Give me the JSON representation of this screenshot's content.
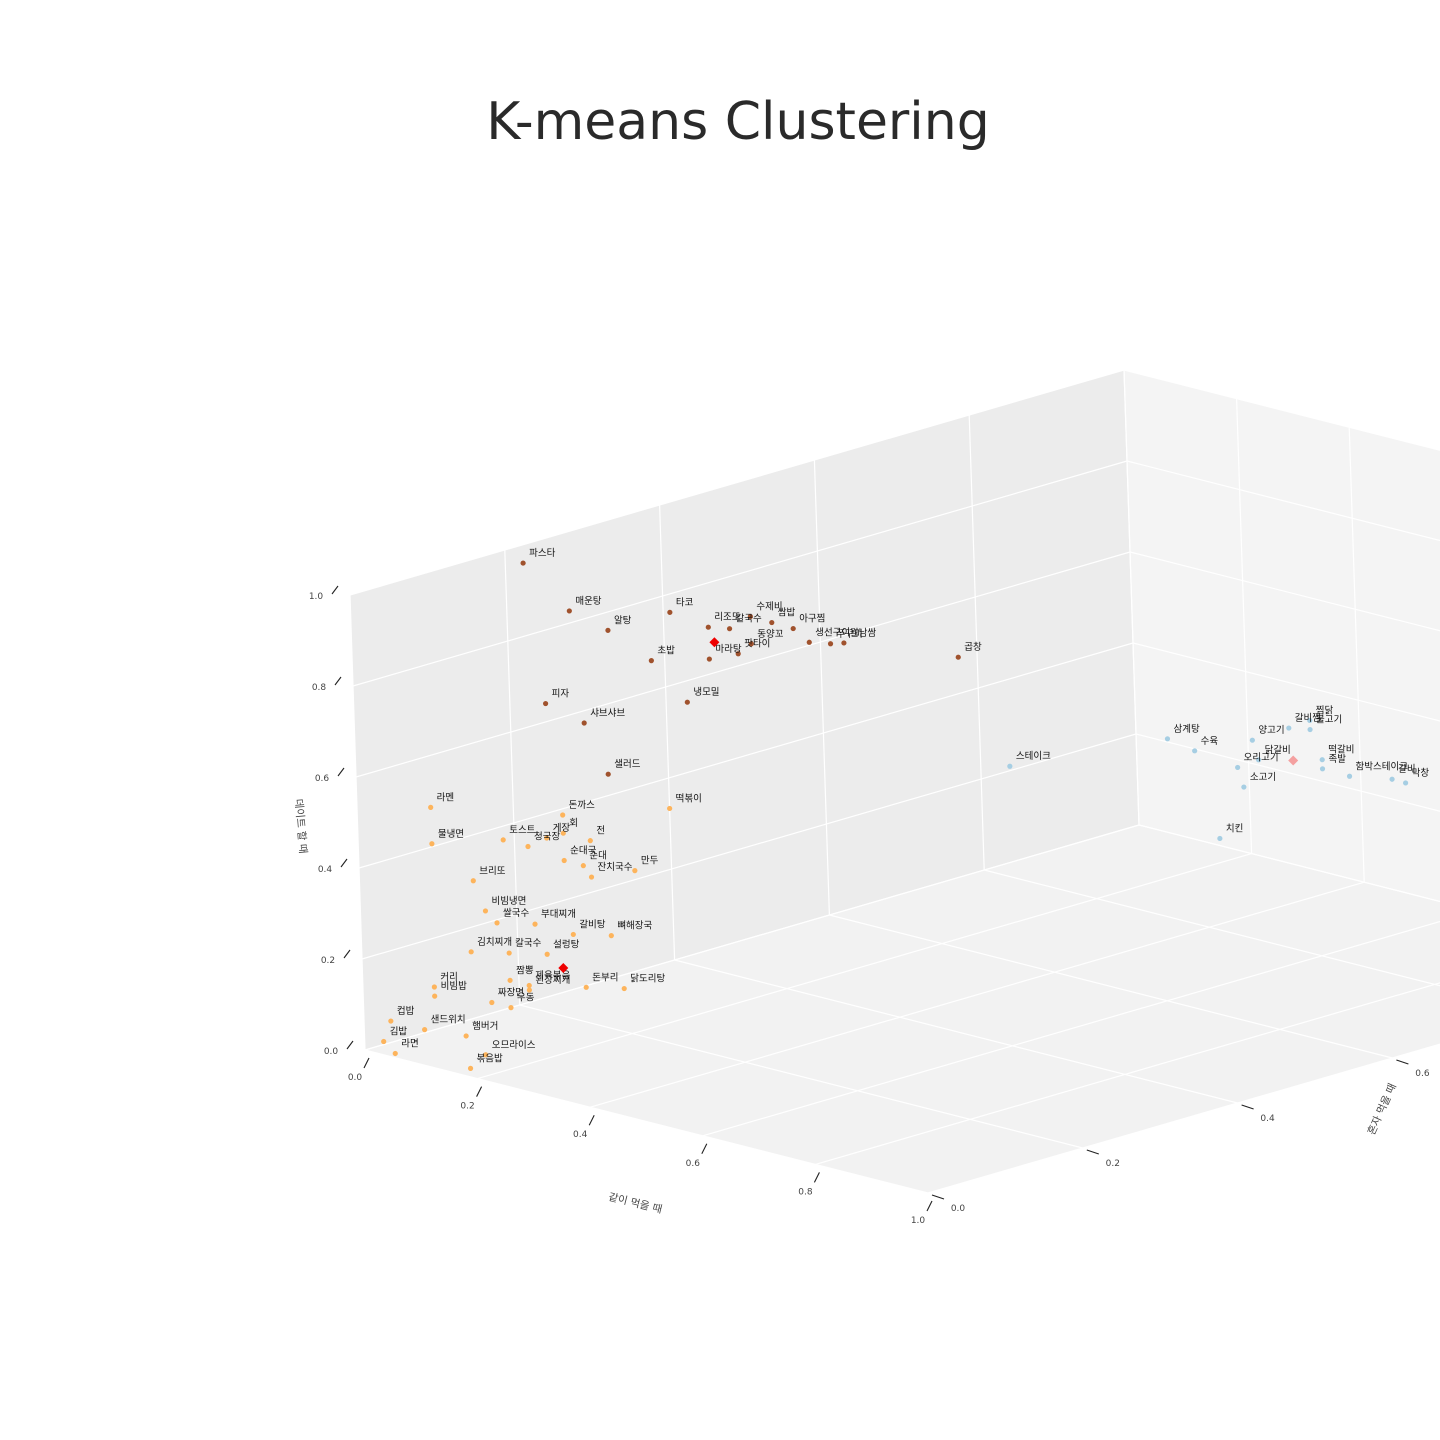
{
  "chart_data": {
    "type": "scatter3d",
    "title": "K-means Clustering",
    "xlabel": "같이 먹을 때",
    "ylabel": "혼자 먹을 때",
    "zlabel": "데이트 할 때",
    "xlim": [
      0,
      1
    ],
    "ylim": [
      0,
      1
    ],
    "zlim": [
      0,
      1
    ],
    "ticks": [
      "0.0",
      "0.2",
      "0.4",
      "0.6",
      "0.8",
      "1.0"
    ],
    "grid": true,
    "colors": {
      "cluster_0": "#a0522d",
      "cluster_1": "#fdb45c",
      "cluster_2": "#a6cee3",
      "center": "#ee0000",
      "center_light": "#f4a0a0"
    },
    "points": [
      {
        "label": "파스타",
        "x": 0.06,
        "y": 0.18,
        "z": 1.0,
        "cluster": 0
      },
      {
        "label": "매운탕",
        "x": 0.14,
        "y": 0.18,
        "z": 0.92,
        "cluster": 0
      },
      {
        "label": "알탕",
        "x": 0.18,
        "y": 0.2,
        "z": 0.88,
        "cluster": 0
      },
      {
        "label": "타코",
        "x": 0.18,
        "y": 0.28,
        "z": 0.88,
        "cluster": 0
      },
      {
        "label": "리조또",
        "x": 0.22,
        "y": 0.3,
        "z": 0.85,
        "cluster": 0
      },
      {
        "label": "수제비",
        "x": 0.24,
        "y": 0.34,
        "z": 0.86,
        "cluster": 0
      },
      {
        "label": "칼국수",
        "x": 0.23,
        "y": 0.32,
        "z": 0.84,
        "cluster": 0
      },
      {
        "label": "쌈밥",
        "x": 0.25,
        "y": 0.36,
        "z": 0.84,
        "cluster": 0
      },
      {
        "label": "초밥",
        "x": 0.2,
        "y": 0.24,
        "z": 0.8,
        "cluster": 0
      },
      {
        "label": "아구찜",
        "x": 0.26,
        "y": 0.38,
        "z": 0.82,
        "cluster": 0
      },
      {
        "label": "동양꼬",
        "x": 0.24,
        "y": 0.34,
        "z": 0.8,
        "cluster": 0
      },
      {
        "label": "마라탕",
        "x": 0.22,
        "y": 0.3,
        "z": 0.78,
        "cluster": 0
      },
      {
        "label": "팟타이",
        "x": 0.23,
        "y": 0.33,
        "z": 0.78,
        "cluster": 0
      },
      {
        "label": "생선구이",
        "x": 0.26,
        "y": 0.4,
        "z": 0.78,
        "cluster": 0
      },
      {
        "label": "쭈꾸미",
        "x": 0.27,
        "y": 0.42,
        "z": 0.77,
        "cluster": 0
      },
      {
        "label": "월남쌈",
        "x": 0.28,
        "y": 0.43,
        "z": 0.77,
        "cluster": 0
      },
      {
        "label": "피자",
        "x": 0.12,
        "y": 0.16,
        "z": 0.72,
        "cluster": 0
      },
      {
        "label": "샤브샤브",
        "x": 0.16,
        "y": 0.18,
        "z": 0.68,
        "cluster": 0
      },
      {
        "label": "냉모밀",
        "x": 0.22,
        "y": 0.27,
        "z": 0.7,
        "cluster": 0
      },
      {
        "label": "곱창",
        "x": 0.33,
        "y": 0.54,
        "z": 0.7,
        "cluster": 0
      },
      {
        "label": "샐러드",
        "x": 0.2,
        "y": 0.18,
        "z": 0.58,
        "cluster": 0
      },
      {
        "label": "라멘",
        "x": 0.02,
        "y": 0.08,
        "z": 0.5,
        "cluster": 1
      },
      {
        "label": "돈까스",
        "x": 0.2,
        "y": 0.12,
        "z": 0.52,
        "cluster": 1
      },
      {
        "label": "회",
        "x": 0.2,
        "y": 0.12,
        "z": 0.48,
        "cluster": 1
      },
      {
        "label": "떡볶이",
        "x": 0.28,
        "y": 0.2,
        "z": 0.52,
        "cluster": 1
      },
      {
        "label": "게장",
        "x": 0.17,
        "y": 0.12,
        "z": 0.46,
        "cluster": 1
      },
      {
        "label": "전",
        "x": 0.22,
        "y": 0.14,
        "z": 0.46,
        "cluster": 1
      },
      {
        "label": "토스트",
        "x": 0.12,
        "y": 0.1,
        "z": 0.45,
        "cluster": 1
      },
      {
        "label": "청국장",
        "x": 0.15,
        "y": 0.11,
        "z": 0.44,
        "cluster": 1
      },
      {
        "label": "물냉면",
        "x": 0.02,
        "y": 0.08,
        "z": 0.42,
        "cluster": 1
      },
      {
        "label": "순대국",
        "x": 0.2,
        "y": 0.12,
        "z": 0.42,
        "cluster": 1
      },
      {
        "label": "순대",
        "x": 0.22,
        "y": 0.13,
        "z": 0.41,
        "cluster": 1
      },
      {
        "label": "잔치국수",
        "x": 0.22,
        "y": 0.14,
        "z": 0.38,
        "cluster": 1
      },
      {
        "label": "만두",
        "x": 0.27,
        "y": 0.16,
        "z": 0.4,
        "cluster": 1
      },
      {
        "label": "브리또",
        "x": 0.12,
        "y": 0.06,
        "z": 0.38,
        "cluster": 1
      },
      {
        "label": "비빔냉면",
        "x": 0.14,
        "y": 0.06,
        "z": 0.32,
        "cluster": 1
      },
      {
        "label": "부대찌개",
        "x": 0.2,
        "y": 0.08,
        "z": 0.3,
        "cluster": 1
      },
      {
        "label": "쌀국수",
        "x": 0.16,
        "y": 0.06,
        "z": 0.3,
        "cluster": 1
      },
      {
        "label": "갈비탕",
        "x": 0.24,
        "y": 0.1,
        "z": 0.28,
        "cluster": 1
      },
      {
        "label": "뼈해장국",
        "x": 0.28,
        "y": 0.12,
        "z": 0.28,
        "cluster": 1
      },
      {
        "label": "김치찌개",
        "x": 0.14,
        "y": 0.04,
        "z": 0.24,
        "cluster": 1
      },
      {
        "label": "칼국수",
        "x": 0.18,
        "y": 0.06,
        "z": 0.24,
        "cluster": 1
      },
      {
        "label": "설렁탕",
        "x": 0.22,
        "y": 0.08,
        "z": 0.24,
        "cluster": 1
      },
      {
        "label": "짬뽕",
        "x": 0.18,
        "y": 0.06,
        "z": 0.18,
        "cluster": 1
      },
      {
        "label": "제육볶음",
        "x": 0.2,
        "y": 0.07,
        "z": 0.17,
        "cluster": 1
      },
      {
        "label": "된장찌개",
        "x": 0.2,
        "y": 0.07,
        "z": 0.16,
        "cluster": 1
      },
      {
        "label": "돈부리",
        "x": 0.26,
        "y": 0.1,
        "z": 0.17,
        "cluster": 1
      },
      {
        "label": "닭도리탕",
        "x": 0.3,
        "y": 0.12,
        "z": 0.17,
        "cluster": 1
      },
      {
        "label": "짜장면",
        "x": 0.16,
        "y": 0.05,
        "z": 0.13,
        "cluster": 1
      },
      {
        "label": "우동",
        "x": 0.18,
        "y": 0.06,
        "z": 0.12,
        "cluster": 1
      },
      {
        "label": "커리",
        "x": 0.1,
        "y": 0.02,
        "z": 0.16,
        "cluster": 1
      },
      {
        "label": "비빔밥",
        "x": 0.1,
        "y": 0.02,
        "z": 0.14,
        "cluster": 1
      },
      {
        "label": "오므라이스",
        "x": 0.16,
        "y": 0.04,
        "z": 0.02,
        "cluster": 1
      },
      {
        "label": "컵밥",
        "x": 0.02,
        "y": 0.02,
        "z": 0.06,
        "cluster": 1
      },
      {
        "label": "샌드위치",
        "x": 0.08,
        "y": 0.02,
        "z": 0.06,
        "cluster": 1
      },
      {
        "label": "햄버거",
        "x": 0.14,
        "y": 0.03,
        "z": 0.06,
        "cluster": 1
      },
      {
        "label": "김밥",
        "x": 0.02,
        "y": 0.01,
        "z": 0.02,
        "cluster": 1
      },
      {
        "label": "라면",
        "x": 0.04,
        "y": 0.01,
        "z": 0.0,
        "cluster": 1
      },
      {
        "label": "볶음밥",
        "x": 0.16,
        "y": 0.02,
        "z": 0.0,
        "cluster": 1
      },
      {
        "label": "삼계탕",
        "x": 0.42,
        "y": 0.74,
        "z": 0.45,
        "cluster": 2
      },
      {
        "label": "스테이크",
        "x": 0.36,
        "y": 0.58,
        "z": 0.45,
        "cluster": 2
      },
      {
        "label": "수육",
        "x": 0.44,
        "y": 0.76,
        "z": 0.42,
        "cluster": 2
      },
      {
        "label": "찜닭",
        "x": 0.48,
        "y": 0.88,
        "z": 0.44,
        "cluster": 2
      },
      {
        "label": "갈비찜",
        "x": 0.47,
        "y": 0.86,
        "z": 0.43,
        "cluster": 2
      },
      {
        "label": "불고기",
        "x": 0.48,
        "y": 0.88,
        "z": 0.42,
        "cluster": 2
      },
      {
        "label": "양고기",
        "x": 0.46,
        "y": 0.82,
        "z": 0.42,
        "cluster": 2
      },
      {
        "label": "닭갈비",
        "x": 0.47,
        "y": 0.82,
        "z": 0.38,
        "cluster": 2
      },
      {
        "label": "오리고기",
        "x": 0.46,
        "y": 0.8,
        "z": 0.37,
        "cluster": 2
      },
      {
        "label": "떡갈비",
        "x": 0.5,
        "y": 0.88,
        "z": 0.36,
        "cluster": 2
      },
      {
        "label": "족발",
        "x": 0.5,
        "y": 0.88,
        "z": 0.34,
        "cluster": 2
      },
      {
        "label": "소고기",
        "x": 0.47,
        "y": 0.8,
        "z": 0.33,
        "cluster": 2
      },
      {
        "label": "함박스테이크",
        "x": 0.52,
        "y": 0.9,
        "z": 0.32,
        "cluster": 2
      },
      {
        "label": "갈비",
        "x": 0.54,
        "y": 0.94,
        "z": 0.3,
        "cluster": 2
      },
      {
        "label": "막창",
        "x": 0.55,
        "y": 0.95,
        "z": 0.29,
        "cluster": 2
      },
      {
        "label": "삼겹살",
        "x": 0.58,
        "y": 1.0,
        "z": 0.26,
        "cluster": 2
      },
      {
        "label": "치킨",
        "x": 0.48,
        "y": 0.76,
        "z": 0.24,
        "cluster": 2
      }
    ],
    "centers": [
      {
        "x": 0.23,
        "y": 0.3,
        "z": 0.82,
        "style": "center"
      },
      {
        "x": 0.22,
        "y": 0.1,
        "z": 0.2,
        "style": "center"
      },
      {
        "x": 0.49,
        "y": 0.85,
        "z": 0.37,
        "style": "center_light"
      }
    ]
  }
}
